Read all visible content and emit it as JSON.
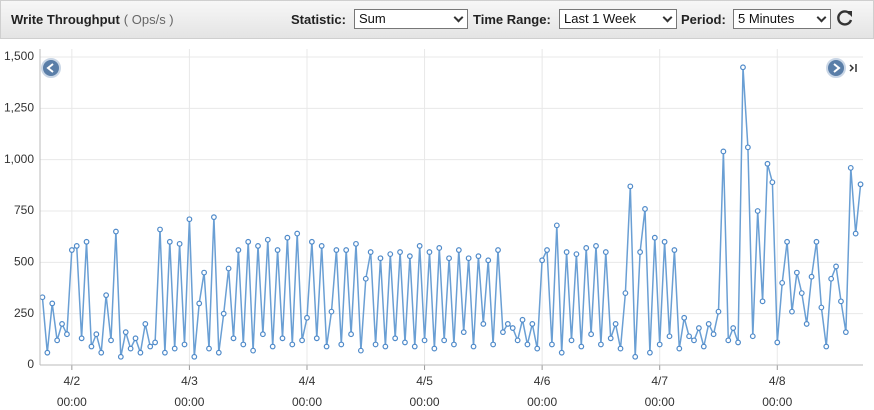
{
  "header": {
    "title": "Write Throughput",
    "unit": "( Ops/s )",
    "statistic_label": "Statistic:",
    "statistic": "Sum",
    "time_range_label": "Time Range:",
    "time_range": "Last 1 Week",
    "period_label": "Period:",
    "period": "5 Minutes"
  },
  "chart_data": {
    "type": "line",
    "color": "#6a9fd4",
    "grid": true,
    "xlim": [
      "4/1 17:30",
      "4/8 17:30"
    ],
    "xticks": [
      {
        "value": "4/2 00:00",
        "label": [
          "4/2",
          "00:00"
        ]
      },
      {
        "value": "4/3 00:00",
        "label": [
          "4/3",
          "00:00"
        ]
      },
      {
        "value": "4/4 00:00",
        "label": [
          "4/4",
          "00:00"
        ]
      },
      {
        "value": "4/5 00:00",
        "label": [
          "4/5",
          "00:00"
        ]
      },
      {
        "value": "4/6 00:00",
        "label": [
          "4/6",
          "00:00"
        ]
      },
      {
        "value": "4/7 00:00",
        "label": [
          "4/7",
          "00:00"
        ]
      },
      {
        "value": "4/8 00:00",
        "label": [
          "4/8",
          "00:00"
        ]
      }
    ],
    "ylim": [
      0,
      1500
    ],
    "yticks": [
      0,
      250,
      500,
      750,
      {
        "value": 1000,
        "label": "1,000"
      },
      {
        "value": 1250,
        "label": "1,250"
      },
      {
        "value": 1500,
        "label": "1,500"
      }
    ],
    "x": [
      "4/1 18:00",
      "4/1 19:00",
      "4/1 20:00",
      "4/1 21:00",
      "4/1 22:00",
      "4/1 23:00",
      "4/2 00:00",
      "4/2 01:00",
      "4/2 02:00",
      "4/2 03:00",
      "4/2 04:00",
      "4/2 05:00",
      "4/2 06:00",
      "4/2 07:00",
      "4/2 08:00",
      "4/2 09:00",
      "4/2 10:00",
      "4/2 11:00",
      "4/2 12:00",
      "4/2 13:00",
      "4/2 14:00",
      "4/2 15:00",
      "4/2 16:00",
      "4/2 17:00",
      "4/2 18:00",
      "4/2 19:00",
      "4/2 20:00",
      "4/2 21:00",
      "4/2 22:00",
      "4/2 23:00",
      "4/3 00:00",
      "4/3 01:00",
      "4/3 02:00",
      "4/3 03:00",
      "4/3 04:00",
      "4/3 05:00",
      "4/3 06:00",
      "4/3 07:00",
      "4/3 08:00",
      "4/3 09:00",
      "4/3 10:00",
      "4/3 11:00",
      "4/3 12:00",
      "4/3 13:00",
      "4/3 14:00",
      "4/3 15:00",
      "4/3 16:00",
      "4/3 17:00",
      "4/3 18:00",
      "4/3 19:00",
      "4/3 20:00",
      "4/3 21:00",
      "4/3 22:00",
      "4/3 23:00",
      "4/4 00:00",
      "4/4 01:00",
      "4/4 02:00",
      "4/4 03:00",
      "4/4 04:00",
      "4/4 05:00",
      "4/4 06:00",
      "4/4 07:00",
      "4/4 08:00",
      "4/4 09:00",
      "4/4 10:00",
      "4/4 11:00",
      "4/4 12:00",
      "4/4 13:00",
      "4/4 14:00",
      "4/4 15:00",
      "4/4 16:00",
      "4/4 17:00",
      "4/4 18:00",
      "4/4 19:00",
      "4/4 20:00",
      "4/4 21:00",
      "4/4 22:00",
      "4/4 23:00",
      "4/5 00:00",
      "4/5 01:00",
      "4/5 02:00",
      "4/5 03:00",
      "4/5 04:00",
      "4/5 05:00",
      "4/5 06:00",
      "4/5 07:00",
      "4/5 08:00",
      "4/5 09:00",
      "4/5 10:00",
      "4/5 11:00",
      "4/5 12:00",
      "4/5 13:00",
      "4/5 14:00",
      "4/5 15:00",
      "4/5 16:00",
      "4/5 17:00",
      "4/5 18:00",
      "4/5 19:00",
      "4/5 20:00",
      "4/5 21:00",
      "4/5 22:00",
      "4/5 23:00",
      "4/6 00:00",
      "4/6 01:00",
      "4/6 02:00",
      "4/6 03:00",
      "4/6 04:00",
      "4/6 05:00",
      "4/6 06:00",
      "4/6 07:00",
      "4/6 08:00",
      "4/6 09:00",
      "4/6 10:00",
      "4/6 11:00",
      "4/6 12:00",
      "4/6 13:00",
      "4/6 14:00",
      "4/6 15:00",
      "4/6 16:00",
      "4/6 17:00",
      "4/6 18:00",
      "4/6 19:00",
      "4/6 20:00",
      "4/6 21:00",
      "4/6 22:00",
      "4/6 23:00",
      "4/7 00:00",
      "4/7 01:00",
      "4/7 02:00",
      "4/7 03:00",
      "4/7 04:00",
      "4/7 05:00",
      "4/7 06:00",
      "4/7 07:00",
      "4/7 08:00",
      "4/7 09:00",
      "4/7 10:00",
      "4/7 11:00",
      "4/7 12:00",
      "4/7 13:00",
      "4/7 14:00",
      "4/7 15:00",
      "4/7 16:00",
      "4/7 17:00",
      "4/7 18:00",
      "4/7 19:00",
      "4/7 20:00",
      "4/7 21:00",
      "4/7 22:00",
      "4/7 23:00",
      "4/8 00:00",
      "4/8 01:00",
      "4/8 02:00",
      "4/8 03:00",
      "4/8 04:00",
      "4/8 05:00",
      "4/8 06:00",
      "4/8 07:00",
      "4/8 08:00",
      "4/8 09:00",
      "4/8 10:00",
      "4/8 11:00",
      "4/8 12:00",
      "4/8 13:00",
      "4/8 14:00",
      "4/8 15:00",
      "4/8 16:00",
      "4/8 17:00"
    ],
    "values": [
      330,
      60,
      300,
      120,
      200,
      150,
      560,
      580,
      130,
      600,
      90,
      150,
      60,
      340,
      120,
      650,
      40,
      160,
      80,
      130,
      60,
      200,
      90,
      110,
      660,
      60,
      600,
      80,
      590,
      100,
      710,
      40,
      300,
      450,
      80,
      720,
      60,
      250,
      470,
      130,
      560,
      100,
      600,
      70,
      580,
      150,
      610,
      90,
      560,
      130,
      620,
      100,
      640,
      120,
      230,
      600,
      130,
      580,
      90,
      260,
      560,
      100,
      560,
      150,
      590,
      70,
      420,
      550,
      100,
      520,
      90,
      540,
      130,
      550,
      110,
      530,
      90,
      580,
      120,
      550,
      80,
      570,
      120,
      520,
      100,
      560,
      160,
      520,
      90,
      530,
      200,
      510,
      100,
      560,
      160,
      200,
      180,
      120,
      220,
      100,
      200,
      80,
      510,
      560,
      100,
      680,
      60,
      550,
      120,
      540,
      90,
      570,
      150,
      580,
      100,
      550,
      130,
      200,
      80,
      350,
      870,
      40,
      550,
      760,
      60,
      620,
      100,
      600,
      140,
      560,
      80,
      230,
      140,
      120,
      180,
      90,
      200,
      150,
      260,
      1040,
      120,
      180,
      110,
      1450,
      1060,
      140,
      750,
      310,
      980,
      890,
      110,
      400,
      600,
      260,
      450,
      350,
      200,
      430,
      600,
      280,
      90,
      420,
      480,
      310,
      160,
      960,
      640,
      880
    ]
  }
}
